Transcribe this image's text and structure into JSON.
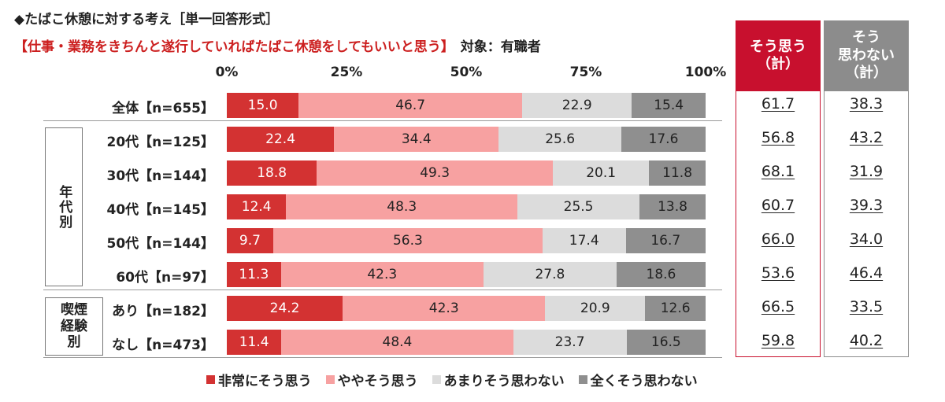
{
  "header": {
    "title": "◆たばこ休憩に対する考え［単一回答形式］",
    "question": "【仕事・業務をきちんと遂行していればたばこ休憩をしてもいいと思う】",
    "target": "対象：有職者"
  },
  "chart_data": {
    "type": "bar",
    "orientation": "horizontal-stacked-100",
    "xticks": [
      "0%",
      "25%",
      "50%",
      "75%",
      "100%"
    ],
    "xlim": [
      0,
      100
    ],
    "legend_position": "bottom",
    "groups": [
      {
        "label": "",
        "rows": [
          0
        ]
      },
      {
        "label": "年代別",
        "rows": [
          1,
          2,
          3,
          4,
          5
        ]
      },
      {
        "label": "喫煙経験別",
        "rows": [
          6,
          7
        ]
      }
    ],
    "categories": [
      "全体【n=655】",
      "20代【n=125】",
      "30代【n=144】",
      "40代【n=145】",
      "50代【n=144】",
      "60代【n=97】",
      "あり【n=182】",
      "なし【n=473】"
    ],
    "series": [
      {
        "name": "非常にそう思う",
        "color": "#d33232",
        "values": [
          15.0,
          22.4,
          18.8,
          12.4,
          9.7,
          11.3,
          24.2,
          11.4
        ]
      },
      {
        "name": "ややそう思う",
        "color": "#f7a1a1",
        "values": [
          46.7,
          34.4,
          49.3,
          48.3,
          56.3,
          42.3,
          42.3,
          48.4
        ]
      },
      {
        "name": "あまりそう思わない",
        "color": "#dcdcdc",
        "values": [
          22.9,
          25.6,
          20.1,
          25.5,
          17.4,
          27.8,
          20.9,
          23.7
        ]
      },
      {
        "name": "全くそう思わない",
        "color": "#8f8f8f",
        "values": [
          15.4,
          17.6,
          11.8,
          13.8,
          16.7,
          18.6,
          12.6,
          16.5
        ]
      }
    ],
    "summary_columns": [
      {
        "header_line1": "そう思う",
        "header_line2": "（計）",
        "color": "#c8102e",
        "values": [
          61.7,
          56.8,
          68.1,
          60.7,
          66.0,
          53.6,
          66.5,
          59.8
        ]
      },
      {
        "header_line1": "そう",
        "header_line2": "思わない",
        "header_line3": "（計）",
        "color": "#8c8c8c",
        "values": [
          38.3,
          43.2,
          31.9,
          39.3,
          34.0,
          46.4,
          33.5,
          40.2
        ]
      }
    ]
  }
}
